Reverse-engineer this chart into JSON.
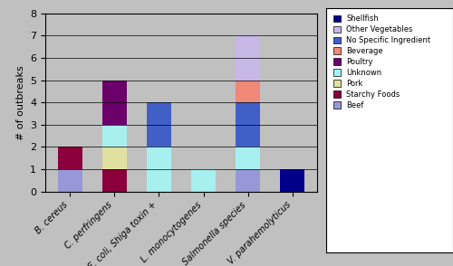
{
  "categories": [
    "B. cereus",
    "C. perfringens",
    "E. coli, Shiga toxin +",
    "L. monocytogenes",
    "Salmonella species",
    "V. parahemolyticus"
  ],
  "legend_labels": [
    "Shellfish",
    "Other Vegetables",
    "No Specific Ingredient",
    "Beverage",
    "Poultry",
    "Unknown",
    "Pork",
    "Starchy Foods",
    "Beef"
  ],
  "color_map": {
    "Shellfish": "#00008B",
    "Other Vegetables": "#C8B8E8",
    "No Specific Ingredient": "#4060C8",
    "Beverage": "#F08878",
    "Poultry": "#6B006B",
    "Unknown": "#A8F0F0",
    "Pork": "#E0E0A0",
    "Starchy Foods": "#8B003B",
    "Beef": "#9898D8"
  },
  "stacks": {
    "B. cereus": {
      "Beef": 1,
      "Starchy Foods": 1
    },
    "C. perfringens": {
      "Starchy Foods": 1,
      "Pork": 1,
      "Unknown": 1,
      "Poultry": 2
    },
    "E. coli, Shiga toxin +": {
      "No Specific Ingredient": 2,
      "Unknown": 2
    },
    "L. monocytogenes": {
      "Unknown": 1
    },
    "Salmonella species": {
      "Beef": 1,
      "Unknown": 1,
      "Beverage": 1,
      "No Specific Ingredient": 2,
      "Other Vegetables": 2
    },
    "V. parahemolyticus": {
      "Shellfish": 1
    }
  },
  "stack_order": [
    "Beef",
    "Starchy Foods",
    "Pork",
    "Unknown",
    "Poultry",
    "No Specific Ingredient",
    "Beverage",
    "Other Vegetables",
    "Shellfish"
  ],
  "ylabel": "# of outbreaks",
  "ylim": [
    0,
    8
  ],
  "yticks": [
    0,
    1,
    2,
    3,
    4,
    5,
    6,
    7,
    8
  ],
  "bar_width": 0.55,
  "fig_bg": "#C0C0C0",
  "ax_bg": "#C0C0C0"
}
